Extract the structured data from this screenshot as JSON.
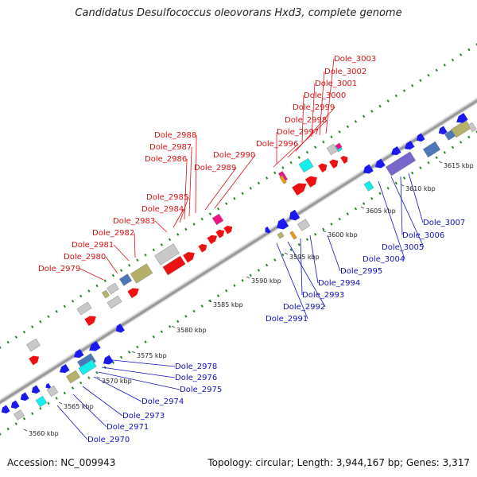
{
  "title": "Candidatus Desulfococcus oleovorans Hxd3, complete genome",
  "footer": {
    "accession": "Accession: NC_009943",
    "topology": "Topology: circular; Length: 3,944,167 bp; Genes: 3,317"
  },
  "colors": {
    "forward_label": "#dd1111",
    "reverse_label": "#1111bb",
    "red": "#ee1111",
    "blue": "#1a1aee",
    "gray": "#c8c8c8",
    "olive": "#b7b06a",
    "steel": "#4a78b8",
    "cyan": "#11eeee",
    "magenta": "#ee1188",
    "purple": "#7766cc",
    "green_dot": "#228822"
  },
  "kbp_ticks": [
    "3560 kbp",
    "3565 kbp",
    "3570 kbp",
    "3575 kbp",
    "3580 kbp",
    "3585 kbp",
    "3590 kbp",
    "3595 kbp",
    "3600 kbp",
    "3605 kbp",
    "3610 kbp",
    "3615 kbp"
  ],
  "forward_labels": [
    "Dole_3003",
    "Dole_3002",
    "Dole_3001",
    "Dole_3000",
    "Dole_2999",
    "Dole_2998",
    "Dole_2997",
    "Dole_2996",
    "Dole_2990",
    "Dole_2989",
    "Dole_2988",
    "Dole_2987",
    "Dole_2986",
    "Dole_2985",
    "Dole_2984",
    "Dole_2983",
    "Dole_2982",
    "Dole_2981",
    "Dole_2980",
    "Dole_2979"
  ],
  "reverse_labels": [
    "Dole_3007",
    "Dole_3006",
    "Dole_3005",
    "Dole_3004",
    "Dole_2995",
    "Dole_2994",
    "Dole_2993",
    "Dole_2992",
    "Dole_2991",
    "Dole_2978",
    "Dole_2976",
    "Dole_2975",
    "Dole_2974",
    "Dole_2973",
    "Dole_2971",
    "Dole_2970"
  ]
}
